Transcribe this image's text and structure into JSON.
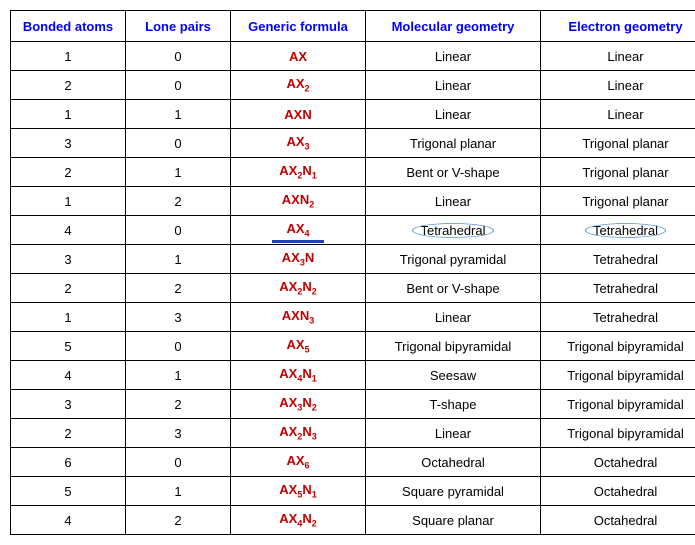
{
  "columns": [
    "Bonded atoms",
    "Lone pairs",
    "Generic formula",
    "Molecular geometry",
    "Electron geometry"
  ],
  "rows": [
    {
      "bonded": "1",
      "lone": "0",
      "formula": "AX",
      "mol": "Linear",
      "elec": "Linear",
      "hl": false
    },
    {
      "bonded": "2",
      "lone": "0",
      "formula": "AX<sub class='sub'>2</sub>",
      "mol": "Linear",
      "elec": "Linear",
      "hl": false
    },
    {
      "bonded": "1",
      "lone": "1",
      "formula": "AXN",
      "mol": "Linear",
      "elec": "Linear",
      "hl": false
    },
    {
      "bonded": "3",
      "lone": "0",
      "formula": "AX<sub class='sub'>3</sub>",
      "mol": "Trigonal planar",
      "elec": "Trigonal planar",
      "hl": false
    },
    {
      "bonded": "2",
      "lone": "1",
      "formula": "AX<sub class='sub'>2</sub>N<sub class='sub'>1</sub>",
      "mol": "Bent or V-shape",
      "elec": "Trigonal planar",
      "hl": false
    },
    {
      "bonded": "1",
      "lone": "2",
      "formula": "AXN<sub class='sub'>2</sub>",
      "mol": "Linear",
      "elec": "Trigonal planar",
      "hl": false
    },
    {
      "bonded": "4",
      "lone": "0",
      "formula": "AX<sub class='sub'>4</sub>",
      "mol": "Tetrahedral",
      "elec": "Tetrahedral",
      "hl": true
    },
    {
      "bonded": "3",
      "lone": "1",
      "formula": "AX<sub class='sub'>3</sub>N",
      "mol": "Trigonal pyramidal",
      "elec": "Tetrahedral",
      "hl": false
    },
    {
      "bonded": "2",
      "lone": "2",
      "formula": "AX<sub class='sub'>2</sub>N<sub class='sub'>2</sub>",
      "mol": "Bent or V-shape",
      "elec": "Tetrahedral",
      "hl": false
    },
    {
      "bonded": "1",
      "lone": "3",
      "formula": "AXN<sub class='sub'>3</sub>",
      "mol": "Linear",
      "elec": "Tetrahedral",
      "hl": false
    },
    {
      "bonded": "5",
      "lone": "0",
      "formula": "AX<sub class='sub'>5</sub>",
      "mol": "Trigonal bipyramidal",
      "elec": "Trigonal bipyramidal",
      "hl": false
    },
    {
      "bonded": "4",
      "lone": "1",
      "formula": "AX<sub class='sub'>4</sub>N<sub class='sub'>1</sub>",
      "mol": "Seesaw",
      "elec": "Trigonal bipyramidal",
      "hl": false
    },
    {
      "bonded": "3",
      "lone": "2",
      "formula": "AX<sub class='sub'>3</sub>N<sub class='sub'>2</sub>",
      "mol": "T-shape",
      "elec": "Trigonal bipyramidal",
      "hl": false
    },
    {
      "bonded": "2",
      "lone": "3",
      "formula": "AX<sub class='sub'>2</sub>N<sub class='sub'>3</sub>",
      "mol": "Linear",
      "elec": "Trigonal bipyramidal",
      "hl": false
    },
    {
      "bonded": "6",
      "lone": "0",
      "formula": "AX<sub class='sub'>6</sub>",
      "mol": "Octahedral",
      "elec": "Octahedral",
      "hl": false
    },
    {
      "bonded": "5",
      "lone": "1",
      "formula": "AX<sub class='sub'>5</sub>N<sub class='sub'>1</sub>",
      "mol": "Square pyramidal",
      "elec": "Octahedral",
      "hl": false
    },
    {
      "bonded": "4",
      "lone": "2",
      "formula": "AX<sub class='sub'>4</sub>N<sub class='sub'>2</sub>",
      "mol": "Square planar",
      "elec": "Octahedral",
      "hl": false
    }
  ],
  "colors": {
    "header_text": "#0000ff",
    "formula_text": "#c00000",
    "body_text": "#000000",
    "border": "#000000",
    "circle": "#4a90d9",
    "underline": "#2040c0",
    "background": "#ffffff"
  },
  "font_sizes": {
    "header": 13,
    "body": 13,
    "sub": 9
  }
}
